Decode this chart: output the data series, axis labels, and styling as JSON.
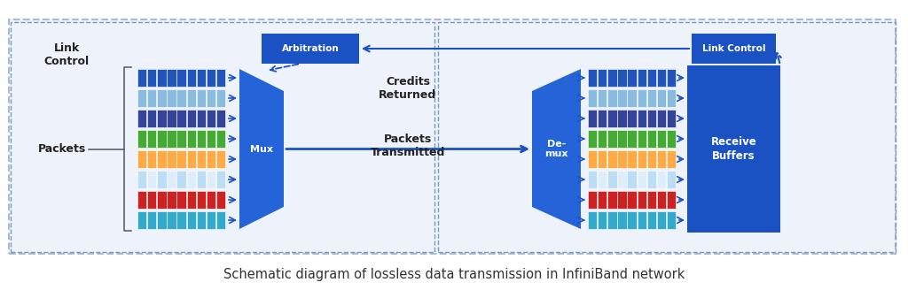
{
  "title": "Schematic diagram of lossless data transmission in InfiniBand network",
  "title_fontsize": 10.5,
  "bg_color": "#ffffff",
  "blue_dark": "#1a52c4",
  "blue_mid": "#2563d9",
  "arrow_color": "#1a52c4",
  "packet_colors": [
    "#2255bb",
    "#88bbdd",
    "#334499",
    "#44aa33",
    "#ffaa44",
    "#cce4f7",
    "#cc2222",
    "#33aacc"
  ],
  "dashed_border_color": "#7799bb",
  "outer_border_color": "#aabbcc",
  "labels": {
    "link_control_left": "Link\nControl",
    "packets": "Packets",
    "mux": "Mux",
    "arbitration": "Arbitration",
    "credits_returned": "Credits\nReturned",
    "packets_transmitted": "Packets\nTransmitted",
    "demux": "De-\nmux",
    "link_control_right": "Link Control",
    "receive_buffers": "Receive\nBuffers"
  }
}
